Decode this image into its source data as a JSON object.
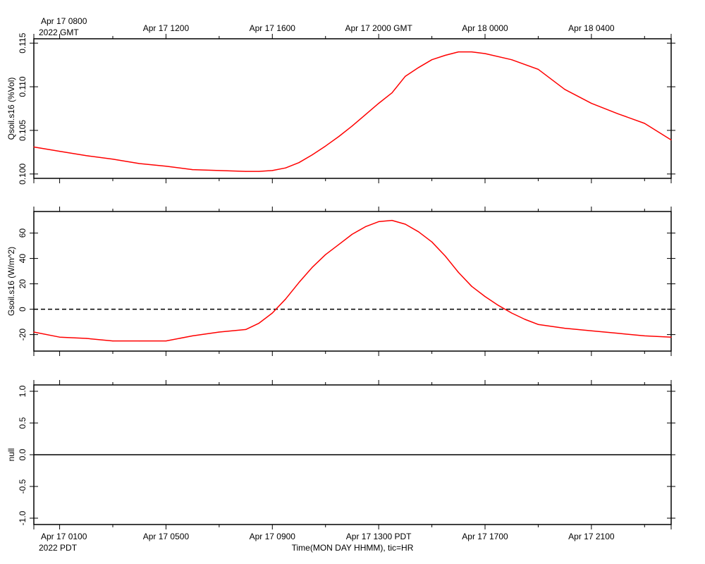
{
  "chart_data": {
    "type": "line",
    "top_axis": {
      "first_label": "Apr 17 0800",
      "year_label": "2022 GMT",
      "tick_labels": [
        "Apr 17 1200",
        "Apr 17 1600",
        "Apr 17 2000 GMT",
        "Apr 18 0000",
        "Apr 18 0400"
      ]
    },
    "bottom_axis": {
      "first_label": "Apr 17 0100",
      "year_label": "2022 PDT",
      "tick_labels": [
        "Apr 17 0500",
        "Apr 17 0900",
        "Apr 17 1300 PDT",
        "Apr 17 1700",
        "Apr 17 2100"
      ],
      "xlabel": "Time(MON DAY HHMM), tic=HR"
    },
    "x_unit": "hours from Apr 17 0000 PDT",
    "xlim": [
      0.03,
      24.0
    ],
    "panels": [
      {
        "ylabel": "Qsoil.s16 (%Vol)",
        "ylim": [
          0.0995,
          0.1155
        ],
        "yticks": [
          "0.100",
          "0.105",
          "0.110",
          "0.115"
        ],
        "line_color": "#ff0000",
        "series": {
          "x": [
            0.03,
            1.0,
            2.0,
            3.0,
            4.0,
            5.0,
            6.0,
            7.0,
            8.0,
            8.5,
            9.0,
            9.5,
            10.0,
            10.5,
            11.0,
            11.5,
            12.0,
            12.5,
            13.0,
            13.5,
            14.0,
            14.5,
            15.0,
            15.5,
            16.0,
            16.5,
            17.0,
            18.0,
            19.0,
            20.0,
            21.0,
            22.0,
            23.0,
            24.0
          ],
          "y": [
            0.1031,
            0.1026,
            0.1021,
            0.1017,
            0.1012,
            0.1009,
            0.1005,
            0.1004,
            0.1003,
            0.1003,
            0.1004,
            0.1007,
            0.1013,
            0.1022,
            0.1032,
            0.1043,
            0.1055,
            0.1068,
            0.1081,
            0.1093,
            0.1112,
            0.1122,
            0.1131,
            0.1136,
            0.114,
            0.114,
            0.1138,
            0.1131,
            0.112,
            0.1097,
            0.1081,
            0.1069,
            0.1058,
            0.1039
          ]
        }
      },
      {
        "ylabel": "Gsoil.s16 (W/m^2)",
        "ylim": [
          -33,
          77
        ],
        "yticks": [
          "-20",
          "0",
          "20",
          "40",
          "60"
        ],
        "zero_line": true,
        "line_color": "#ff0000",
        "series": {
          "x": [
            0.03,
            1.0,
            2.0,
            3.0,
            4.0,
            5.0,
            6.0,
            7.0,
            8.0,
            8.5,
            9.0,
            9.5,
            10.0,
            10.5,
            11.0,
            11.5,
            12.0,
            12.5,
            13.0,
            13.5,
            14.0,
            14.5,
            15.0,
            15.5,
            16.0,
            16.5,
            17.0,
            17.5,
            18.0,
            18.5,
            19.0,
            20.0,
            21.0,
            22.0,
            23.0,
            24.0
          ],
          "y": [
            -18,
            -22,
            -23,
            -25,
            -25,
            -25,
            -21,
            -18,
            -16,
            -11,
            -3,
            8,
            21,
            33,
            43,
            51,
            59,
            65,
            69,
            70,
            67,
            61,
            53,
            42,
            29,
            18,
            10,
            3,
            -3,
            -8,
            -12,
            -15,
            -17,
            -19,
            -21,
            -22
          ]
        }
      },
      {
        "ylabel": "null",
        "ylim": [
          -1.1,
          1.1
        ],
        "yticks": [
          "-1.0",
          "-0.5",
          "0.0",
          "0.5",
          "1.0"
        ],
        "line_color": "#000000",
        "series": {
          "x": [
            0.03,
            24.0
          ],
          "y": [
            0.0,
            0.0
          ]
        }
      }
    ]
  }
}
